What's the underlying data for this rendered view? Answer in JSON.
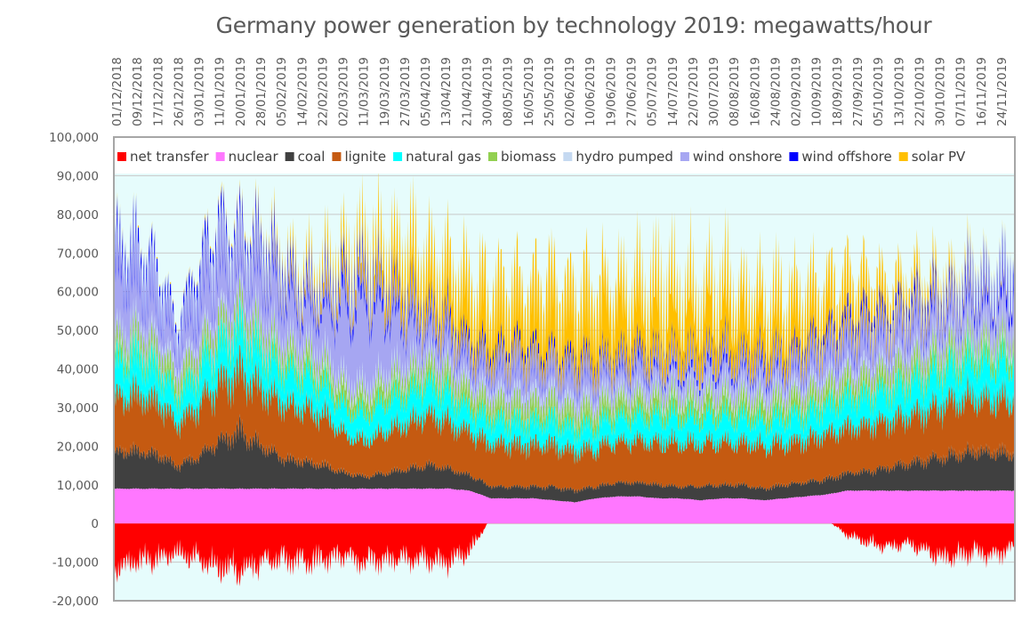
{
  "chart_data": {
    "type": "area",
    "title": "Germany power generation by technology 2019: megawatts/hour",
    "xlabel": "",
    "ylabel": "",
    "ylim": [
      -20000,
      100000
    ],
    "yticks": [
      -20000,
      -10000,
      0,
      10000,
      20000,
      30000,
      40000,
      50000,
      60000,
      70000,
      80000,
      90000,
      100000
    ],
    "ytick_labels": [
      "-20,000",
      "-10,000",
      "0",
      "10,000",
      "20,000",
      "30,000",
      "40,000",
      "50,000",
      "60,000",
      "70,000",
      "80,000",
      "90,000",
      "100,000"
    ],
    "grid": true,
    "legend_position": "top-inside",
    "stacked": true,
    "x": [
      "01/12/2018",
      "09/12/2018",
      "17/12/2018",
      "26/12/2018",
      "03/01/2019",
      "11/01/2019",
      "20/01/2019",
      "28/01/2019",
      "05/02/2019",
      "14/02/2019",
      "22/02/2019",
      "02/03/2019",
      "11/03/2019",
      "19/03/2019",
      "27/03/2019",
      "05/04/2019",
      "13/04/2019",
      "21/04/2019",
      "30/04/2019",
      "08/05/2019",
      "16/05/2019",
      "25/05/2019",
      "02/06/2019",
      "10/06/2019",
      "19/06/2019",
      "27/06/2019",
      "05/07/2019",
      "14/07/2019",
      "22/07/2019",
      "30/07/2019",
      "08/08/2019",
      "16/08/2019",
      "24/08/2019",
      "02/09/2019",
      "10/09/2019",
      "18/09/2019",
      "27/09/2019",
      "05/10/2019",
      "13/10/2019",
      "22/10/2019",
      "30/10/2019",
      "07/11/2019",
      "16/11/2019",
      "24/11/2019"
    ],
    "series": [
      {
        "name": "net transfer",
        "color": "#ff0000",
        "values": [
          -11000,
          -10000,
          -9000,
          -8000,
          -9000,
          -11000,
          -12000,
          -10000,
          -9000,
          -10000,
          -9000,
          -8000,
          -10000,
          -9000,
          -9000,
          -9000,
          -10000,
          -7000,
          1500,
          1500,
          1000,
          1500,
          2500,
          1500,
          1500,
          1500,
          1500,
          1000,
          1500,
          1500,
          1500,
          1000,
          1500,
          1500,
          1000,
          -3000,
          -5000,
          -6000,
          -5000,
          -8000,
          -9000,
          -7000,
          -8000,
          -6000
        ]
      },
      {
        "name": "nuclear",
        "color": "#ff77ff",
        "values": [
          9000,
          9000,
          9000,
          9000,
          9000,
          9000,
          9000,
          9000,
          9000,
          9000,
          9000,
          9000,
          9000,
          9000,
          9000,
          9000,
          9000,
          8500,
          6500,
          6500,
          6500,
          6000,
          5500,
          6500,
          7000,
          7000,
          6500,
          6500,
          6000,
          6500,
          6500,
          6000,
          6500,
          7000,
          7500,
          8500,
          8500,
          8500,
          8500,
          8500,
          8500,
          8500,
          8500,
          8500
        ]
      },
      {
        "name": "coal",
        "color": "#404040",
        "values": [
          9000,
          10000,
          9000,
          6000,
          8000,
          12000,
          15000,
          11000,
          8000,
          7000,
          6000,
          4000,
          3000,
          4000,
          5000,
          6000,
          5000,
          4000,
          3000,
          3000,
          3000,
          3500,
          3000,
          3000,
          3500,
          3500,
          3500,
          3000,
          3500,
          3500,
          3500,
          3000,
          3500,
          3500,
          4000,
          4500,
          5000,
          6000,
          7000,
          8000,
          9000,
          10000,
          10000,
          9000
        ]
      },
      {
        "name": "lignite",
        "color": "#c55a11",
        "values": [
          14000,
          15000,
          14000,
          11000,
          13000,
          15000,
          16000,
          15000,
          14000,
          14000,
          13000,
          10000,
          9000,
          11000,
          12000,
          13000,
          12000,
          11000,
          11000,
          11000,
          11000,
          11000,
          10000,
          10000,
          11000,
          11000,
          11000,
          11500,
          11000,
          11000,
          11000,
          11000,
          11000,
          11000,
          11500,
          12000,
          12000,
          12000,
          12500,
          13000,
          14000,
          14000,
          14000,
          14000
        ]
      },
      {
        "name": "natural gas",
        "color": "#00ffff",
        "values": [
          9000,
          10000,
          9000,
          7000,
          9000,
          10000,
          11000,
          10000,
          9000,
          9000,
          8000,
          7000,
          7000,
          8000,
          8000,
          8000,
          7500,
          6000,
          6500,
          6000,
          6000,
          6500,
          6000,
          6000,
          6500,
          6500,
          7000,
          7000,
          7000,
          7000,
          7000,
          6500,
          7000,
          7000,
          7500,
          8000,
          8000,
          8000,
          8500,
          9000,
          9500,
          10000,
          10000,
          10000
        ]
      },
      {
        "name": "biomass",
        "color": "#92d050",
        "values": [
          4500,
          4500,
          4500,
          4500,
          4500,
          4500,
          4500,
          4500,
          4500,
          4500,
          4500,
          4500,
          4500,
          4500,
          4500,
          4500,
          4500,
          4500,
          4500,
          4500,
          4500,
          4500,
          4500,
          4500,
          4500,
          4500,
          4500,
          4500,
          4500,
          4500,
          4500,
          4500,
          4500,
          4500,
          4500,
          4500,
          4500,
          4500,
          4500,
          4500,
          4500,
          4500,
          4500,
          4500
        ]
      },
      {
        "name": "hydro pumped",
        "color": "#c5d9f1",
        "values": [
          2000,
          2000,
          2000,
          2000,
          2000,
          2000,
          2000,
          2000,
          2000,
          2000,
          2000,
          2000,
          2000,
          2000,
          2000,
          2000,
          2000,
          2000,
          2000,
          2000,
          2000,
          2000,
          2000,
          2000,
          2000,
          2000,
          2000,
          2000,
          2000,
          2000,
          2000,
          2000,
          2000,
          2000,
          2000,
          2000,
          2000,
          2000,
          2000,
          2000,
          2000,
          2000,
          2000,
          2000
        ]
      },
      {
        "name": "wind onshore",
        "color": "#a6a6f2",
        "values": [
          18000,
          16000,
          14000,
          8000,
          14000,
          18000,
          12000,
          16000,
          15000,
          12000,
          14000,
          22000,
          25000,
          18000,
          14000,
          8000,
          9000,
          7000,
          7000,
          9000,
          8000,
          7000,
          8000,
          7000,
          6000,
          7000,
          6000,
          6000,
          6000,
          7000,
          6000,
          7000,
          6000,
          7000,
          8000,
          9000,
          10000,
          8000,
          10000,
          9000,
          8000,
          10000,
          9000,
          12000
        ]
      },
      {
        "name": "wind offshore",
        "color": "#0000ff",
        "values": [
          3500,
          3500,
          3000,
          2000,
          3500,
          3500,
          3000,
          3500,
          3500,
          3000,
          3000,
          4000,
          4000,
          3500,
          3000,
          2500,
          2500,
          2500,
          2500,
          2500,
          2500,
          2000,
          2500,
          2000,
          2000,
          2500,
          2000,
          2000,
          2000,
          2500,
          2000,
          2500,
          2000,
          2500,
          2500,
          3000,
          3000,
          2500,
          3000,
          3000,
          2500,
          3500,
          3000,
          4000
        ]
      },
      {
        "name": "solar PV",
        "color": "#ffc000",
        "values": [
          500,
          400,
          300,
          300,
          500,
          600,
          800,
          1200,
          2000,
          3000,
          4000,
          5000,
          6000,
          8000,
          10000,
          12000,
          13000,
          14000,
          14000,
          14000,
          15000,
          16000,
          16000,
          16000,
          16000,
          16000,
          16000,
          15500,
          15000,
          15000,
          14000,
          13000,
          13000,
          12000,
          11000,
          9000,
          8000,
          6000,
          5000,
          3500,
          2500,
          1500,
          800,
          500
        ]
      }
    ]
  },
  "legend": [
    {
      "label": "net transfer",
      "color": "#ff0000"
    },
    {
      "label": "nuclear",
      "color": "#ff77ff"
    },
    {
      "label": "coal",
      "color": "#404040"
    },
    {
      "label": "lignite",
      "color": "#c55a11"
    },
    {
      "label": "natural gas",
      "color": "#00ffff"
    },
    {
      "label": "biomass",
      "color": "#92d050"
    },
    {
      "label": "hydro pumped",
      "color": "#c5d9f1"
    },
    {
      "label": "wind onshore",
      "color": "#a6a6f2"
    },
    {
      "label": "wind offshore",
      "color": "#0000ff"
    },
    {
      "label": "solar PV",
      "color": "#ffc000"
    }
  ],
  "colors": {
    "plot_background": "#e6fcfc",
    "gridline": "#c8c8c8",
    "axis_text": "#595959",
    "border": "#a6a6a6"
  }
}
